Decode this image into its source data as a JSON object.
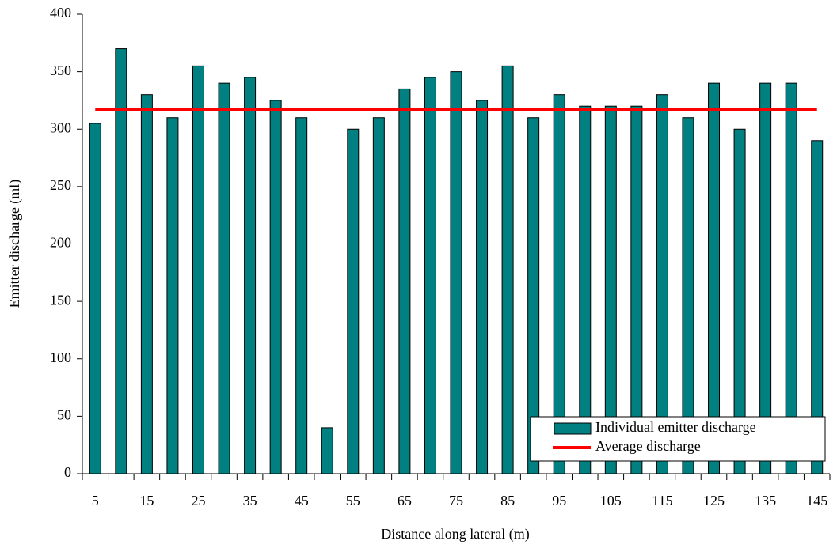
{
  "chart_data": {
    "type": "bar",
    "x_label": "Distance along lateral (m)",
    "y_label": "Emitter discharge (ml)",
    "categories": [
      5,
      null,
      15,
      null,
      25,
      null,
      35,
      null,
      45,
      null,
      55,
      null,
      65,
      null,
      75,
      null,
      85,
      null,
      95,
      null,
      105,
      null,
      115,
      null,
      125,
      null,
      135,
      null,
      145
    ],
    "series": [
      {
        "name": "Individual emitter discharge",
        "type": "bar",
        "color": "#008080",
        "values": [
          305,
          370,
          330,
          310,
          355,
          340,
          345,
          325,
          310,
          40,
          300,
          310,
          335,
          345,
          350,
          325,
          355,
          310,
          330,
          320,
          320,
          320,
          330,
          310,
          340,
          300,
          340,
          340,
          290
        ]
      },
      {
        "name": "Average discharge",
        "type": "line",
        "color": "#ff0000",
        "values": [
          317,
          317,
          317,
          317,
          317,
          317,
          317,
          317,
          317,
          317,
          317,
          317,
          317,
          317,
          317,
          317,
          317,
          317,
          317,
          317,
          317,
          317,
          317,
          317,
          317,
          317,
          317,
          317,
          317
        ]
      }
    ],
    "ylim": [
      0,
      400
    ],
    "yticks": [
      0,
      50,
      100,
      150,
      200,
      250,
      300,
      350,
      400
    ],
    "legend": "lower right"
  }
}
